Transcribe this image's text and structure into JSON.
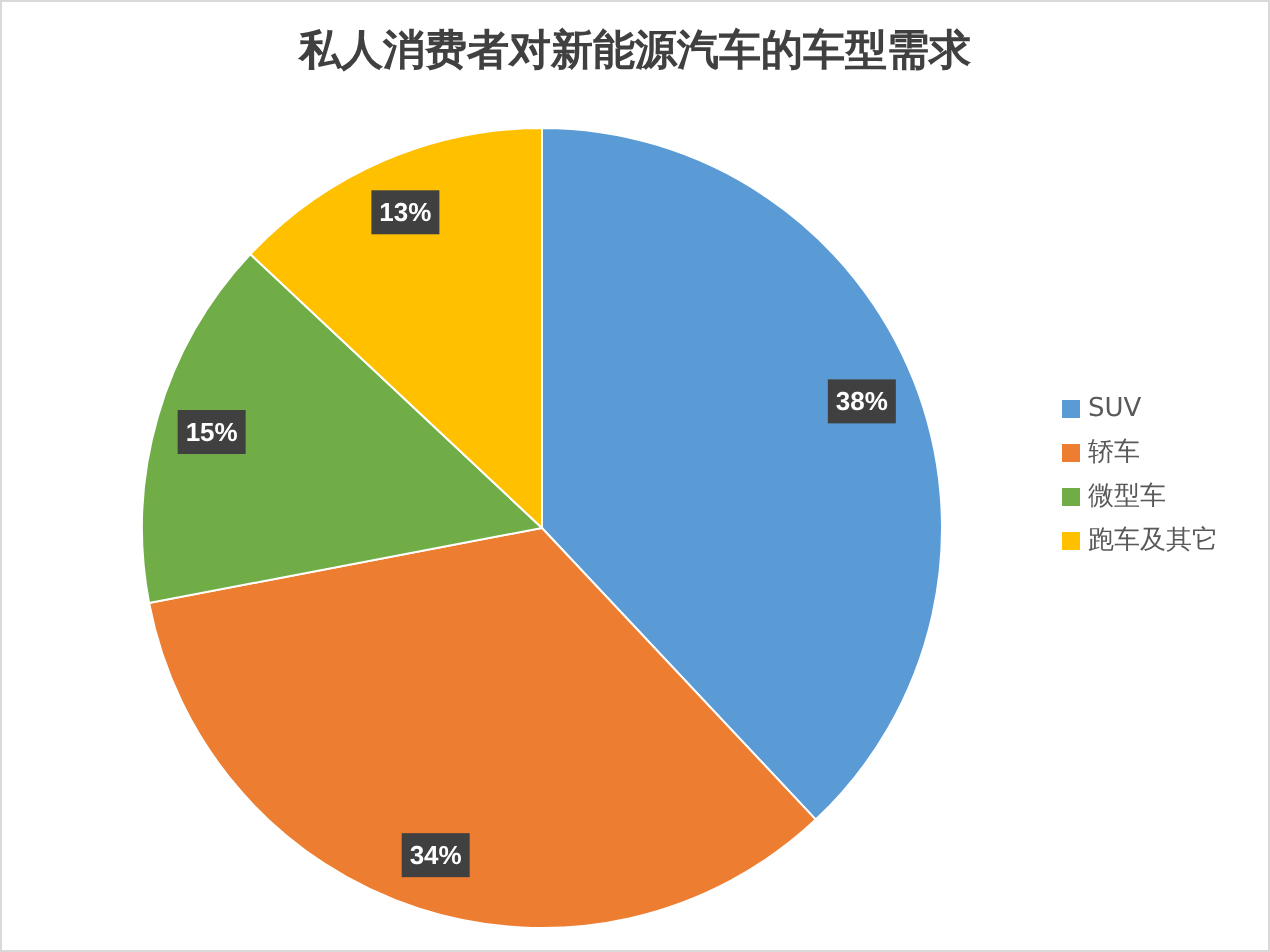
{
  "chart_data": {
    "type": "pie",
    "title": "私人消费者对新能源汽车的车型需求",
    "categories": [
      "SUV",
      "轿车",
      "微型车",
      "跑车及其它"
    ],
    "values": [
      38,
      34,
      15,
      13
    ],
    "value_labels": [
      "38%",
      "34%",
      "15%",
      "13%"
    ],
    "colors": [
      "#5b9bd5",
      "#ed7d31",
      "#70ad47",
      "#ffc000"
    ],
    "legend": "right"
  }
}
